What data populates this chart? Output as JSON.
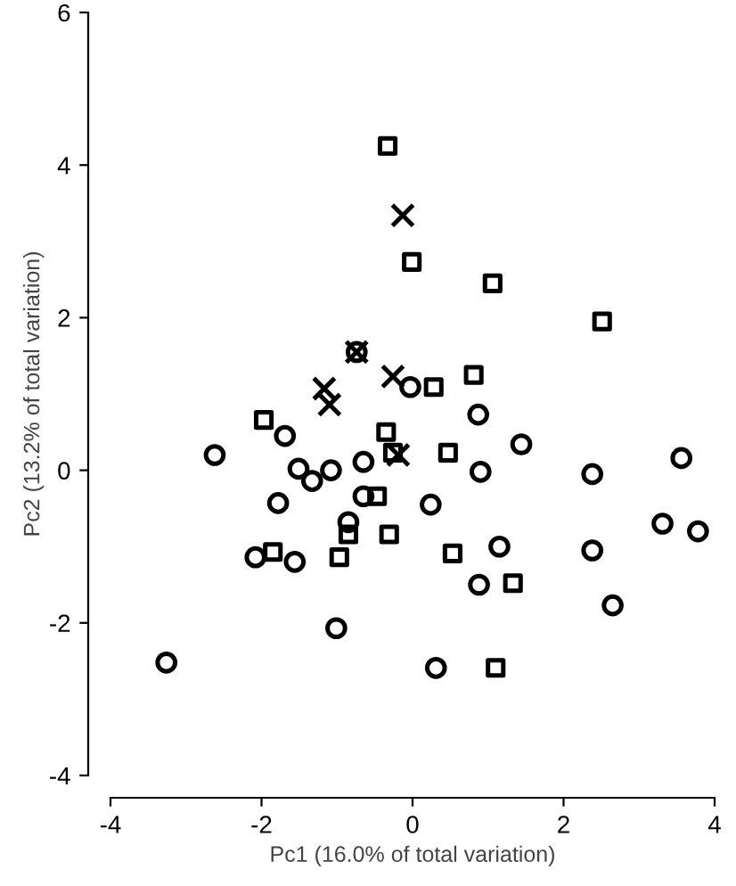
{
  "chart_data": {
    "type": "scatter",
    "xlabel": "Pc1 (16.0% of total variation)",
    "ylabel": "Pc2 (13.2% of total variation)",
    "xlim": [
      -4,
      4
    ],
    "ylim": [
      -4,
      6
    ],
    "xticks": [
      -4,
      -2,
      0,
      2,
      4
    ],
    "yticks": [
      -4,
      -2,
      0,
      2,
      4,
      6
    ],
    "grid": false,
    "legend": false,
    "series": [
      {
        "color": "#000000",
        "marker": "circle",
        "x": [
          -0.74,
          -0.03,
          0.87,
          -1.69,
          -2.62,
          1.44,
          3.56,
          -1.51,
          -1.33,
          -1.08,
          -0.65,
          0.9,
          2.38,
          -1.78,
          -0.65,
          0.24,
          -0.85,
          3.31,
          3.78,
          -2.08,
          -1.56,
          1.15,
          2.38,
          0.88,
          2.65,
          -1.01,
          -3.26,
          0.31
        ],
        "values": [
          1.55,
          1.09,
          0.73,
          0.45,
          0.2,
          0.34,
          0.16,
          0.02,
          -0.14,
          0.0,
          0.11,
          -0.02,
          -0.05,
          -0.43,
          -0.34,
          -0.45,
          -0.68,
          -0.7,
          -0.8,
          -1.14,
          -1.2,
          -1.0,
          -1.05,
          -1.5,
          -1.77,
          -2.07,
          -2.52,
          -2.59
        ]
      },
      {
        "color": "#000000",
        "marker": "square",
        "x": [
          -0.33,
          -0.01,
          1.06,
          2.51,
          0.81,
          0.28,
          -1.97,
          -0.35,
          -0.26,
          0.47,
          -0.47,
          -0.85,
          -0.31,
          -1.85,
          -0.97,
          0.53,
          1.33,
          1.1
        ],
        "values": [
          4.25,
          2.73,
          2.45,
          1.95,
          1.25,
          1.09,
          0.66,
          0.5,
          0.23,
          0.23,
          -0.34,
          -0.84,
          -0.84,
          -1.07,
          -1.14,
          -1.09,
          -1.48,
          -2.59
        ]
      },
      {
        "color": "#000000",
        "marker": "cross",
        "x": [
          -0.13,
          -0.26,
          -1.17,
          -1.1,
          -0.74,
          -0.19
        ],
        "values": [
          3.34,
          1.23,
          1.07,
          0.86,
          1.55,
          0.2
        ]
      }
    ]
  }
}
